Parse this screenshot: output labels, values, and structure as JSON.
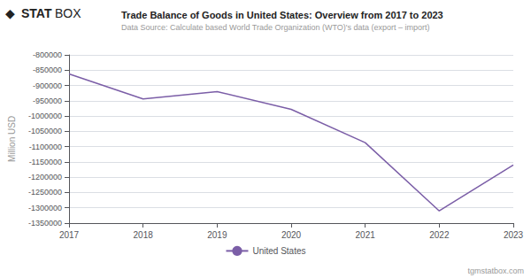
{
  "chart_data": {
    "type": "line",
    "title": "Trade Balance of Goods in United States: Overview from 2017 to 2023",
    "subtitle": "Data Source: Calculate based World Trade Organization (WTO)'s data (export – import)",
    "y_label": "Million USD",
    "x": [
      2017,
      2018,
      2019,
      2020,
      2021,
      2022,
      2023
    ],
    "xlim": [
      2017,
      2023
    ],
    "xticks": [
      2017,
      2018,
      2019,
      2020,
      2021,
      2022,
      2023
    ],
    "series": [
      {
        "name": "United States",
        "color": "#7B5EA7",
        "values": [
          -862000,
          -944000,
          -920000,
          -978000,
          -1087000,
          -1310000,
          -1160000
        ]
      }
    ],
    "ylim": [
      -1350000,
      -800000
    ],
    "yticks": [
      -800000,
      -850000,
      -900000,
      -950000,
      -1000000,
      -1050000,
      -1100000,
      -1150000,
      -1200000,
      -1250000,
      -1300000,
      -1350000
    ],
    "grid": true,
    "legend": "bottom",
    "annotations": [
      "◆",
      "STAT",
      "BOX",
      "tgmstatbox.com"
    ]
  }
}
